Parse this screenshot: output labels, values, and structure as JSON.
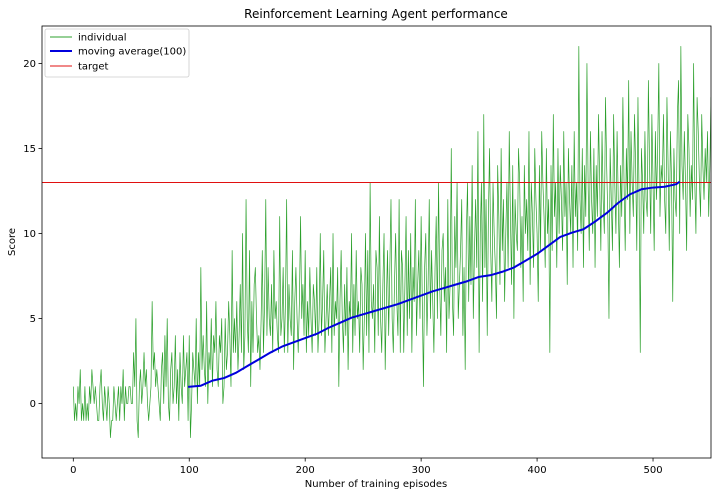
{
  "chart_data": {
    "type": "line",
    "title": "Reinforcement Learning Agent performance",
    "xlabel": "Number of training episodes",
    "ylabel": "Score",
    "xlim": [
      -27,
      550
    ],
    "ylim": [
      -3.2,
      22.2
    ],
    "xticks": [
      0,
      100,
      200,
      300,
      400,
      500
    ],
    "yticks": [
      0,
      5,
      10,
      15,
      20
    ],
    "grid": false,
    "legend_position": "top-left",
    "series": [
      {
        "name": "individual",
        "color": "#2ca02c",
        "x_start": 0,
        "x_step": 1,
        "y": [
          1,
          -1,
          0,
          -1,
          1,
          0,
          2,
          -1,
          0,
          -1,
          1,
          -1,
          0,
          -1,
          1,
          0,
          2,
          1,
          0,
          1,
          0,
          -1,
          -1,
          1,
          2,
          0,
          -1,
          1,
          0,
          -1,
          1,
          0,
          -2,
          -1,
          -1,
          1,
          0,
          -1,
          0,
          1,
          -1,
          1,
          0,
          2,
          -1,
          1,
          0,
          0,
          1,
          1,
          0,
          0,
          3,
          1,
          5,
          -1,
          -2,
          1,
          2,
          0,
          1,
          3,
          1,
          2,
          0,
          -1,
          0,
          1,
          6,
          2,
          3,
          1,
          2,
          1,
          0,
          -1,
          2,
          3,
          0,
          4,
          1,
          5,
          0,
          -1,
          2,
          3,
          0,
          1,
          4,
          0,
          2,
          -1,
          3,
          1,
          0,
          4,
          1,
          2,
          3,
          -1,
          4,
          -2,
          0,
          3,
          2,
          1,
          5,
          0,
          3,
          1,
          8,
          2,
          4,
          2,
          1,
          6,
          0,
          3,
          2,
          5,
          1,
          4,
          3,
          6,
          2,
          1,
          4,
          3,
          5,
          0,
          1,
          5,
          2,
          3,
          6,
          4,
          1,
          9,
          3,
          5,
          3,
          6,
          2,
          4,
          7,
          3,
          10,
          2,
          4,
          12,
          5,
          3,
          9,
          1,
          6,
          3,
          7,
          8,
          5,
          3,
          4,
          2,
          5,
          9,
          3,
          6,
          12,
          4,
          8,
          5,
          4,
          7,
          3,
          9,
          5,
          6,
          4,
          3,
          11,
          4,
          5,
          8,
          3,
          6,
          12,
          3,
          7,
          5,
          4,
          9,
          2,
          6,
          8,
          5,
          3,
          6,
          11,
          5,
          7,
          4,
          9,
          3,
          6,
          4,
          8,
          5,
          3,
          7,
          6,
          4,
          8,
          3,
          5,
          10,
          4,
          6,
          9,
          3,
          5,
          7,
          4,
          6,
          8,
          3,
          10,
          4,
          6,
          5,
          8,
          1,
          6,
          9,
          5,
          3,
          7,
          4,
          8,
          2,
          6,
          5,
          10,
          3,
          7,
          4,
          9,
          5,
          6,
          3,
          8,
          7,
          2,
          5,
          10,
          4,
          9,
          3,
          13,
          6,
          5,
          7,
          3,
          9,
          8,
          4,
          11,
          5,
          3,
          7,
          10,
          2,
          6,
          9,
          4,
          8,
          12,
          5,
          3,
          7,
          10,
          6,
          4,
          12,
          3,
          9,
          8,
          3,
          7,
          11,
          4,
          9,
          5,
          10,
          3,
          8,
          6,
          12,
          4,
          7,
          9,
          5,
          11,
          6,
          1,
          8,
          10,
          4,
          7,
          12,
          5,
          9,
          6,
          3,
          8,
          11,
          5,
          13,
          7,
          4,
          9,
          10,
          6,
          8,
          3,
          12,
          5,
          7,
          15,
          6,
          4,
          11,
          8,
          13,
          5,
          7,
          9,
          12,
          4,
          8,
          2,
          10,
          13,
          6,
          11,
          7,
          14,
          5,
          9,
          12,
          8,
          16,
          3,
          10,
          13,
          6,
          17,
          8,
          12,
          4,
          11,
          15,
          9,
          6,
          13,
          10,
          8,
          5,
          14,
          11,
          7,
          15,
          9,
          12,
          6,
          10,
          13,
          8,
          16,
          11,
          7,
          14,
          5,
          12,
          10,
          9,
          15,
          13,
          8,
          11,
          6,
          14,
          10,
          12,
          9,
          16,
          7,
          13,
          11,
          8,
          15,
          12,
          10,
          6,
          14,
          9,
          16,
          13,
          11,
          8,
          15,
          10,
          12,
          3,
          14,
          9,
          17,
          11,
          13,
          8,
          15,
          10,
          14,
          12,
          9,
          16,
          11,
          13,
          7,
          15,
          12,
          10,
          14,
          8,
          16,
          11,
          13,
          9,
          21,
          12,
          10,
          15,
          8,
          14,
          11,
          20,
          13,
          9,
          16,
          12,
          10,
          15,
          8,
          14,
          11,
          17,
          13,
          9,
          16,
          12,
          10,
          18,
          14,
          11,
          5,
          15,
          12,
          9,
          17,
          13,
          10,
          16,
          12,
          8,
          14,
          11,
          18,
          13,
          9,
          15,
          12,
          19,
          10,
          16,
          13,
          11,
          17,
          14,
          9,
          18,
          12,
          3,
          15,
          13,
          10,
          16,
          12,
          11,
          19,
          14,
          10,
          17,
          13,
          9,
          16,
          12,
          15,
          20,
          11,
          14,
          13,
          17,
          12,
          10,
          18,
          14,
          9,
          16,
          13,
          6,
          15,
          12,
          11,
          17,
          19,
          10,
          21,
          14,
          12,
          16,
          13,
          9,
          17,
          15,
          11,
          14,
          12,
          20,
          13,
          10,
          18,
          16,
          13,
          11,
          17,
          14,
          12,
          15,
          13,
          16,
          11,
          14,
          18,
          13
        ]
      },
      {
        "name": "moving average(100)",
        "color": "#0000dd",
        "points": [
          [
            99,
            0.98
          ],
          [
            110,
            1.05
          ],
          [
            120,
            1.35
          ],
          [
            130,
            1.5
          ],
          [
            140,
            1.8
          ],
          [
            150,
            2.2
          ],
          [
            160,
            2.6
          ],
          [
            170,
            3.0
          ],
          [
            180,
            3.35
          ],
          [
            190,
            3.6
          ],
          [
            200,
            3.85
          ],
          [
            210,
            4.1
          ],
          [
            220,
            4.45
          ],
          [
            230,
            4.75
          ],
          [
            240,
            5.05
          ],
          [
            250,
            5.25
          ],
          [
            260,
            5.45
          ],
          [
            270,
            5.65
          ],
          [
            280,
            5.85
          ],
          [
            290,
            6.1
          ],
          [
            300,
            6.35
          ],
          [
            310,
            6.6
          ],
          [
            320,
            6.8
          ],
          [
            330,
            7.0
          ],
          [
            340,
            7.2
          ],
          [
            350,
            7.45
          ],
          [
            360,
            7.55
          ],
          [
            370,
            7.75
          ],
          [
            380,
            8.0
          ],
          [
            390,
            8.4
          ],
          [
            400,
            8.8
          ],
          [
            410,
            9.3
          ],
          [
            420,
            9.8
          ],
          [
            430,
            10.05
          ],
          [
            440,
            10.25
          ],
          [
            450,
            10.7
          ],
          [
            460,
            11.2
          ],
          [
            470,
            11.8
          ],
          [
            480,
            12.3
          ],
          [
            490,
            12.6
          ],
          [
            500,
            12.7
          ],
          [
            510,
            12.75
          ],
          [
            520,
            12.9
          ],
          [
            523,
            13.05
          ]
        ]
      },
      {
        "name": "target",
        "color": "#e01010",
        "value": 13
      }
    ]
  }
}
